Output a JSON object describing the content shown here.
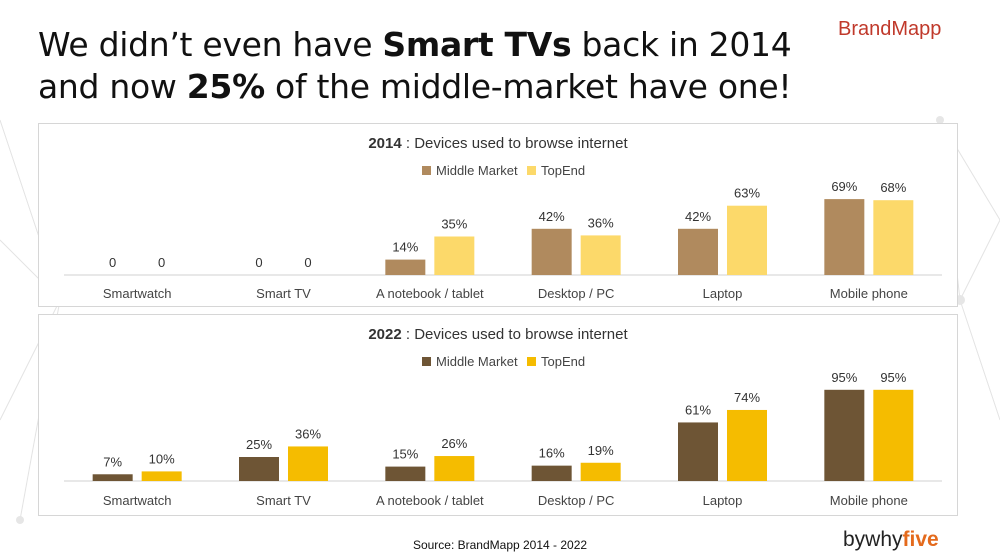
{
  "header": {
    "line1_pre": "We didn’t even have ",
    "line1_bold": "Smart TVs",
    "line1_post": " back in 2014",
    "line2_pre": "and now ",
    "line2_bold": "25%",
    "line2_post": " of the middle-market have one!"
  },
  "brand": {
    "logo": "BrandMapp",
    "color": "#c0392b"
  },
  "footer": {
    "source": "Source: BrandMapp 2014 - 2022",
    "logo_pre": "bywhy",
    "logo_bold": "five",
    "logo_accent": "#e46a1c"
  },
  "chart_data": [
    {
      "type": "bar",
      "title_year": "2014",
      "title_rest": " : Devices used to browse internet",
      "legend_position": "top-center",
      "grid": false,
      "categories": [
        "Smartwatch",
        "Smart TV",
        "A notebook /  tablet",
        "Desktop / PC",
        "Laptop",
        "Mobile phone"
      ],
      "ylim": [
        0,
        100
      ],
      "series": [
        {
          "name": "Middle Market",
          "color": "#b08a5e",
          "values": [
            0,
            0,
            14,
            42,
            42,
            69
          ],
          "labels": [
            "0",
            "0",
            "14%",
            "42%",
            "42%",
            "69%"
          ]
        },
        {
          "name": "TopEnd",
          "color": "#fcd96a",
          "values": [
            0,
            0,
            35,
            36,
            63,
            68
          ],
          "labels": [
            "0",
            "0",
            "35%",
            "36%",
            "63%",
            "68%"
          ]
        }
      ]
    },
    {
      "type": "bar",
      "title_year": "2022",
      "title_rest": " : Devices used to browse internet",
      "legend_position": "top-center",
      "grid": false,
      "categories": [
        "Smartwatch",
        "Smart TV",
        "A notebook /  tablet",
        "Desktop / PC",
        "Laptop",
        "Mobile phone"
      ],
      "ylim": [
        0,
        100
      ],
      "series": [
        {
          "name": "Middle Market",
          "color": "#6e5535",
          "values": [
            7,
            25,
            15,
            16,
            61,
            95
          ],
          "labels": [
            "7%",
            "25%",
            "15%",
            "16%",
            "61%",
            "95%"
          ]
        },
        {
          "name": "TopEnd",
          "color": "#f5bc00",
          "values": [
            10,
            36,
            26,
            19,
            74,
            95
          ],
          "labels": [
            "10%",
            "36%",
            "26%",
            "19%",
            "74%",
            "95%"
          ]
        }
      ]
    }
  ]
}
